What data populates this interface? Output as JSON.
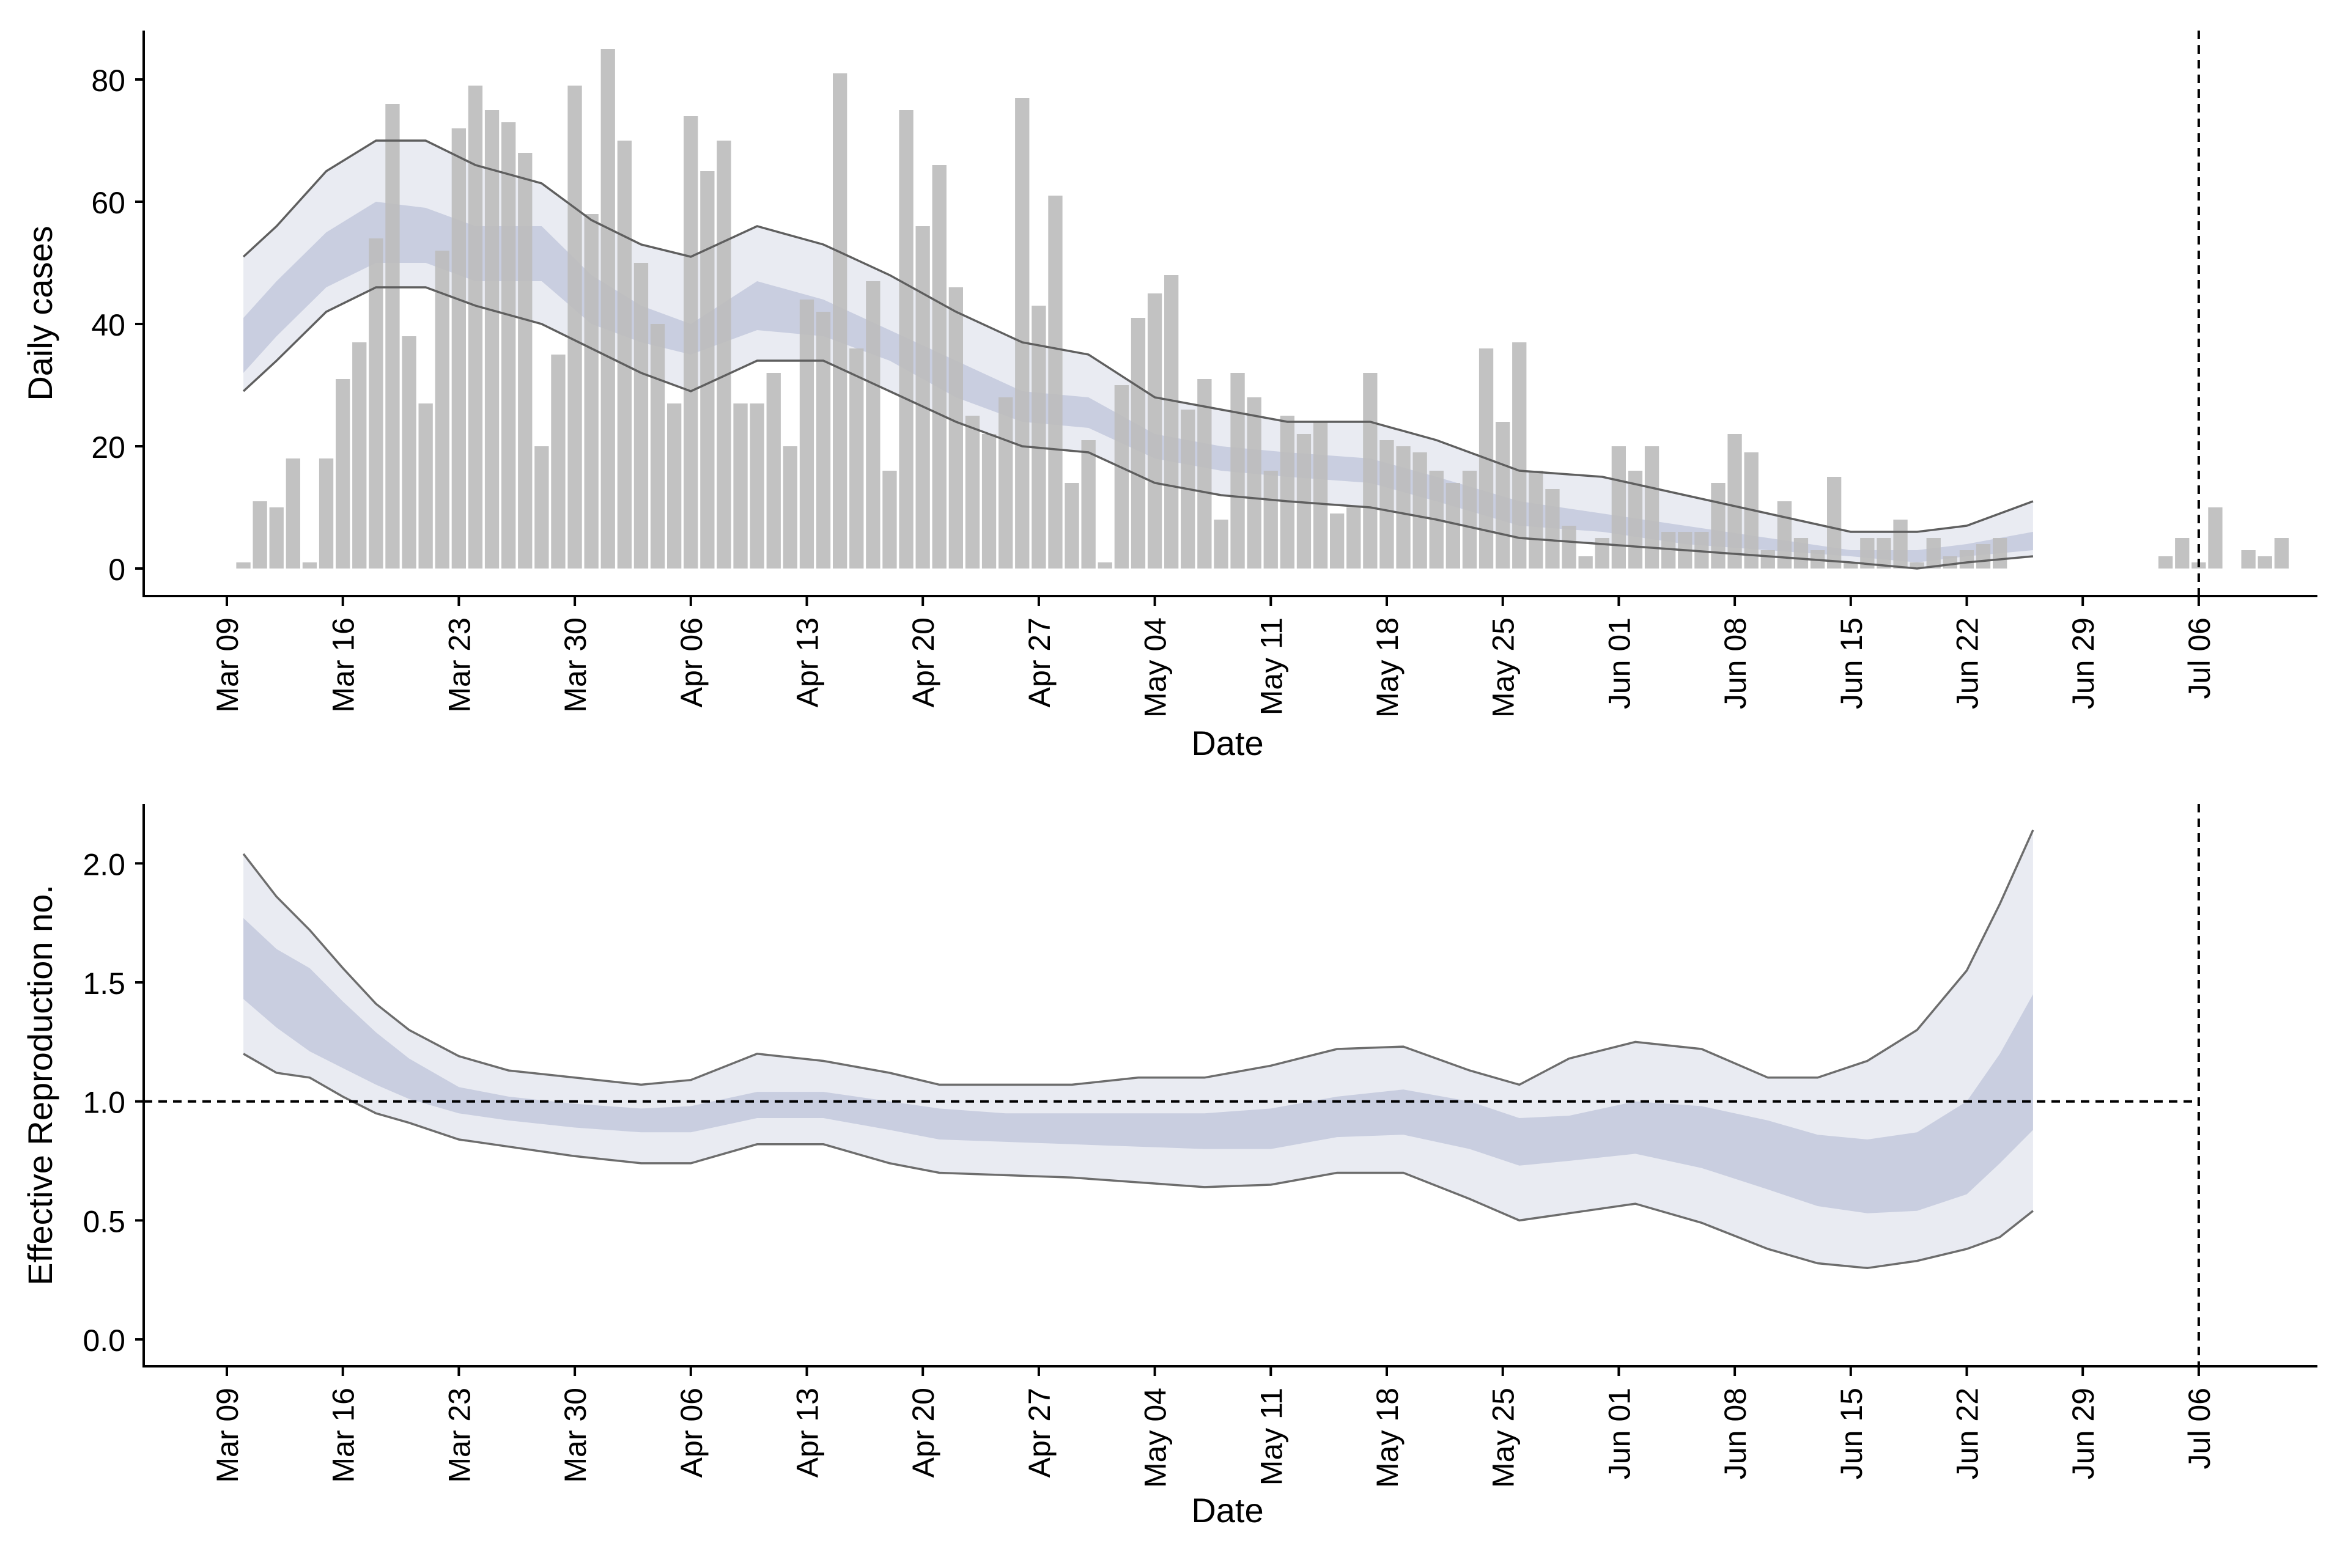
{
  "chart_data": [
    {
      "type": "bar",
      "panel": "top",
      "xlabel": "Date",
      "ylabel": "Daily cases",
      "ylim": [
        -4,
        88
      ],
      "yticks": [
        0,
        20,
        40,
        60,
        80
      ],
      "xticks": [
        "Mar 09",
        "Mar 16",
        "Mar 23",
        "Mar 30",
        "Apr 06",
        "Apr 13",
        "Apr 20",
        "Apr 27",
        "May 04",
        "May 11",
        "May 18",
        "May 25",
        "Jun 01",
        "Jun 08",
        "Jun 15",
        "Jun 22",
        "Jun 29",
        "Jul 06"
      ],
      "xlim": [
        "2020-03-09",
        "2020-07-12"
      ],
      "vline_date": "2020-07-06",
      "grid": false,
      "colors": {
        "bars": "#bdbdbd",
        "band_outer": "#e9ebf2",
        "band_inner": "#c9cee0",
        "bounds_line": "#5f5f5f",
        "vline": "#000000"
      },
      "bars": {
        "start_date": "2020-03-10",
        "values": [
          1,
          11,
          10,
          18,
          1,
          18,
          31,
          37,
          54,
          76,
          38,
          27,
          52,
          72,
          79,
          75,
          73,
          68,
          20,
          35,
          79,
          58,
          85,
          70,
          50,
          40,
          27,
          74,
          65,
          70,
          27,
          27,
          32,
          20,
          44,
          42,
          81,
          36,
          47,
          16,
          75,
          56,
          66,
          46,
          25,
          22,
          28,
          77,
          43,
          61,
          14,
          21,
          1,
          30,
          41,
          45,
          48,
          26,
          31,
          8,
          32,
          28,
          16,
          25,
          22,
          24,
          9,
          10,
          32,
          21,
          20,
          19,
          16,
          14,
          16,
          36,
          24,
          37,
          16,
          13,
          7,
          2,
          5,
          20,
          16,
          20,
          6,
          6,
          6,
          14,
          22,
          19,
          3,
          11,
          5,
          3,
          15,
          1,
          5,
          5,
          8,
          1,
          5,
          2,
          3,
          4,
          5,
          null,
          null,
          null,
          null,
          null,
          null,
          null,
          null,
          null,
          2,
          5,
          1,
          10,
          null,
          3,
          2,
          5
        ]
      },
      "estimate": {
        "start_date": "2020-03-10",
        "end_date": "2020-06-26",
        "points": [
          {
            "date": "2020-03-10",
            "upper": 51,
            "lower": 29,
            "inner_upper": 41,
            "inner_lower": 32
          },
          {
            "date": "2020-03-12",
            "upper": 56,
            "lower": 34,
            "inner_upper": 47,
            "inner_lower": 38
          },
          {
            "date": "2020-03-15",
            "upper": 65,
            "lower": 42,
            "inner_upper": 55,
            "inner_lower": 46
          },
          {
            "date": "2020-03-18",
            "upper": 70,
            "lower": 46,
            "inner_upper": 60,
            "inner_lower": 50
          },
          {
            "date": "2020-03-21",
            "upper": 70,
            "lower": 46,
            "inner_upper": 59,
            "inner_lower": 50
          },
          {
            "date": "2020-03-24",
            "upper": 66,
            "lower": 43,
            "inner_upper": 56,
            "inner_lower": 47
          },
          {
            "date": "2020-03-28",
            "upper": 63,
            "lower": 40,
            "inner_upper": 56,
            "inner_lower": 47
          },
          {
            "date": "2020-03-31",
            "upper": 57,
            "lower": 36,
            "inner_upper": 48,
            "inner_lower": 40
          },
          {
            "date": "2020-04-03",
            "upper": 53,
            "lower": 32,
            "inner_upper": 43,
            "inner_lower": 37
          },
          {
            "date": "2020-04-06",
            "upper": 51,
            "lower": 29,
            "inner_upper": 40,
            "inner_lower": 35
          },
          {
            "date": "2020-04-10",
            "upper": 56,
            "lower": 34,
            "inner_upper": 47,
            "inner_lower": 39
          },
          {
            "date": "2020-04-14",
            "upper": 53,
            "lower": 34,
            "inner_upper": 44,
            "inner_lower": 38
          },
          {
            "date": "2020-04-18",
            "upper": 48,
            "lower": 29,
            "inner_upper": 39,
            "inner_lower": 34
          },
          {
            "date": "2020-04-22",
            "upper": 42,
            "lower": 24,
            "inner_upper": 34,
            "inner_lower": 28
          },
          {
            "date": "2020-04-26",
            "upper": 37,
            "lower": 20,
            "inner_upper": 29,
            "inner_lower": 24
          },
          {
            "date": "2020-04-30",
            "upper": 35,
            "lower": 19,
            "inner_upper": 28,
            "inner_lower": 23
          },
          {
            "date": "2020-05-04",
            "upper": 28,
            "lower": 14,
            "inner_upper": 22,
            "inner_lower": 18
          },
          {
            "date": "2020-05-08",
            "upper": 26,
            "lower": 12,
            "inner_upper": 20,
            "inner_lower": 16
          },
          {
            "date": "2020-05-12",
            "upper": 24,
            "lower": 11,
            "inner_upper": 19,
            "inner_lower": 15
          },
          {
            "date": "2020-05-17",
            "upper": 24,
            "lower": 10,
            "inner_upper": 18,
            "inner_lower": 14
          },
          {
            "date": "2020-05-21",
            "upper": 21,
            "lower": 8,
            "inner_upper": 15,
            "inner_lower": 11
          },
          {
            "date": "2020-05-26",
            "upper": 16,
            "lower": 5,
            "inner_upper": 11,
            "inner_lower": 7
          },
          {
            "date": "2020-05-31",
            "upper": 15,
            "lower": 4,
            "inner_upper": 9,
            "inner_lower": 6
          },
          {
            "date": "2020-06-05",
            "upper": 12,
            "lower": 3,
            "inner_upper": 7,
            "inner_lower": 4
          },
          {
            "date": "2020-06-10",
            "upper": 9,
            "lower": 2,
            "inner_upper": 5,
            "inner_lower": 3
          },
          {
            "date": "2020-06-15",
            "upper": 6,
            "lower": 1,
            "inner_upper": 3,
            "inner_lower": 2
          },
          {
            "date": "2020-06-19",
            "upper": 6,
            "lower": 0,
            "inner_upper": 3,
            "inner_lower": 1
          },
          {
            "date": "2020-06-22",
            "upper": 7,
            "lower": 1,
            "inner_upper": 4,
            "inner_lower": 2
          },
          {
            "date": "2020-06-26",
            "upper": 11,
            "lower": 2,
            "inner_upper": 6,
            "inner_lower": 3
          }
        ]
      }
    },
    {
      "type": "area",
      "panel": "bottom",
      "xlabel": "Date",
      "ylabel": "Effective Reproduction no.",
      "ylim": [
        -0.1,
        2.25
      ],
      "yticks": [
        0.0,
        0.5,
        1.0,
        1.5,
        2.0
      ],
      "ytick_labels": [
        "0.0",
        "0.5",
        "1.0",
        "1.5",
        "2.0"
      ],
      "xticks": [
        "Mar 09",
        "Mar 16",
        "Mar 23",
        "Mar 30",
        "Apr 06",
        "Apr 13",
        "Apr 20",
        "Apr 27",
        "May 04",
        "May 11",
        "May 18",
        "May 25",
        "Jun 01",
        "Jun 08",
        "Jun 15",
        "Jun 22",
        "Jun 29",
        "Jul 06"
      ],
      "xlim": [
        "2020-03-09",
        "2020-07-12"
      ],
      "vline_date": "2020-07-06",
      "hline": 1.0,
      "grid": false,
      "colors": {
        "band_outer": "#e9ebf2",
        "band_inner": "#c9cee0",
        "bounds_line": "#6d6d6d",
        "reference_lines": "#000000"
      },
      "estimate": {
        "points": [
          {
            "date": "2020-03-10",
            "upper": 2.04,
            "lower": 1.2,
            "inner_upper": 1.77,
            "inner_lower": 1.43
          },
          {
            "date": "2020-03-12",
            "upper": 1.86,
            "lower": 1.12,
            "inner_upper": 1.64,
            "inner_lower": 1.31
          },
          {
            "date": "2020-03-14",
            "upper": 1.72,
            "lower": 1.1,
            "inner_upper": 1.56,
            "inner_lower": 1.21
          },
          {
            "date": "2020-03-16",
            "upper": 1.56,
            "lower": 1.02,
            "inner_upper": 1.42,
            "inner_lower": 1.14
          },
          {
            "date": "2020-03-18",
            "upper": 1.41,
            "lower": 0.95,
            "inner_upper": 1.29,
            "inner_lower": 1.07
          },
          {
            "date": "2020-03-20",
            "upper": 1.3,
            "lower": 0.91,
            "inner_upper": 1.18,
            "inner_lower": 1.01
          },
          {
            "date": "2020-03-23",
            "upper": 1.19,
            "lower": 0.84,
            "inner_upper": 1.06,
            "inner_lower": 0.95
          },
          {
            "date": "2020-03-26",
            "upper": 1.13,
            "lower": 0.81,
            "inner_upper": 1.02,
            "inner_lower": 0.92
          },
          {
            "date": "2020-03-30",
            "upper": 1.1,
            "lower": 0.77,
            "inner_upper": 0.99,
            "inner_lower": 0.89
          },
          {
            "date": "2020-04-03",
            "upper": 1.07,
            "lower": 0.74,
            "inner_upper": 0.97,
            "inner_lower": 0.87
          },
          {
            "date": "2020-04-06",
            "upper": 1.09,
            "lower": 0.74,
            "inner_upper": 0.98,
            "inner_lower": 0.87
          },
          {
            "date": "2020-04-10",
            "upper": 1.2,
            "lower": 0.82,
            "inner_upper": 1.04,
            "inner_lower": 0.93
          },
          {
            "date": "2020-04-14",
            "upper": 1.17,
            "lower": 0.82,
            "inner_upper": 1.04,
            "inner_lower": 0.93
          },
          {
            "date": "2020-04-18",
            "upper": 1.12,
            "lower": 0.74,
            "inner_upper": 1.0,
            "inner_lower": 0.88
          },
          {
            "date": "2020-04-21",
            "upper": 1.07,
            "lower": 0.7,
            "inner_upper": 0.97,
            "inner_lower": 0.84
          },
          {
            "date": "2020-04-25",
            "upper": 1.07,
            "lower": 0.69,
            "inner_upper": 0.95,
            "inner_lower": 0.83
          },
          {
            "date": "2020-04-29",
            "upper": 1.07,
            "lower": 0.68,
            "inner_upper": 0.95,
            "inner_lower": 0.82
          },
          {
            "date": "2020-05-03",
            "upper": 1.1,
            "lower": 0.66,
            "inner_upper": 0.95,
            "inner_lower": 0.81
          },
          {
            "date": "2020-05-07",
            "upper": 1.1,
            "lower": 0.64,
            "inner_upper": 0.95,
            "inner_lower": 0.8
          },
          {
            "date": "2020-05-11",
            "upper": 1.15,
            "lower": 0.65,
            "inner_upper": 0.97,
            "inner_lower": 0.8
          },
          {
            "date": "2020-05-15",
            "upper": 1.22,
            "lower": 0.7,
            "inner_upper": 1.02,
            "inner_lower": 0.85
          },
          {
            "date": "2020-05-19",
            "upper": 1.23,
            "lower": 0.7,
            "inner_upper": 1.05,
            "inner_lower": 0.86
          },
          {
            "date": "2020-05-23",
            "upper": 1.13,
            "lower": 0.59,
            "inner_upper": 1.0,
            "inner_lower": 0.8
          },
          {
            "date": "2020-05-26",
            "upper": 1.07,
            "lower": 0.5,
            "inner_upper": 0.93,
            "inner_lower": 0.73
          },
          {
            "date": "2020-05-29",
            "upper": 1.18,
            "lower": 0.53,
            "inner_upper": 0.94,
            "inner_lower": 0.75
          },
          {
            "date": "2020-06-02",
            "upper": 1.25,
            "lower": 0.57,
            "inner_upper": 1.0,
            "inner_lower": 0.78
          },
          {
            "date": "2020-06-06",
            "upper": 1.22,
            "lower": 0.49,
            "inner_upper": 0.98,
            "inner_lower": 0.72
          },
          {
            "date": "2020-06-10",
            "upper": 1.1,
            "lower": 0.38,
            "inner_upper": 0.92,
            "inner_lower": 0.63
          },
          {
            "date": "2020-06-13",
            "upper": 1.1,
            "lower": 0.32,
            "inner_upper": 0.86,
            "inner_lower": 0.56
          },
          {
            "date": "2020-06-16",
            "upper": 1.17,
            "lower": 0.3,
            "inner_upper": 0.84,
            "inner_lower": 0.53
          },
          {
            "date": "2020-06-19",
            "upper": 1.3,
            "lower": 0.33,
            "inner_upper": 0.87,
            "inner_lower": 0.54
          },
          {
            "date": "2020-06-22",
            "upper": 1.55,
            "lower": 0.38,
            "inner_upper": 1.0,
            "inner_lower": 0.61
          },
          {
            "date": "2020-06-24",
            "upper": 1.83,
            "lower": 0.43,
            "inner_upper": 1.2,
            "inner_lower": 0.74
          },
          {
            "date": "2020-06-26",
            "upper": 2.14,
            "lower": 0.54,
            "inner_upper": 1.45,
            "inner_lower": 0.88
          }
        ]
      }
    }
  ]
}
